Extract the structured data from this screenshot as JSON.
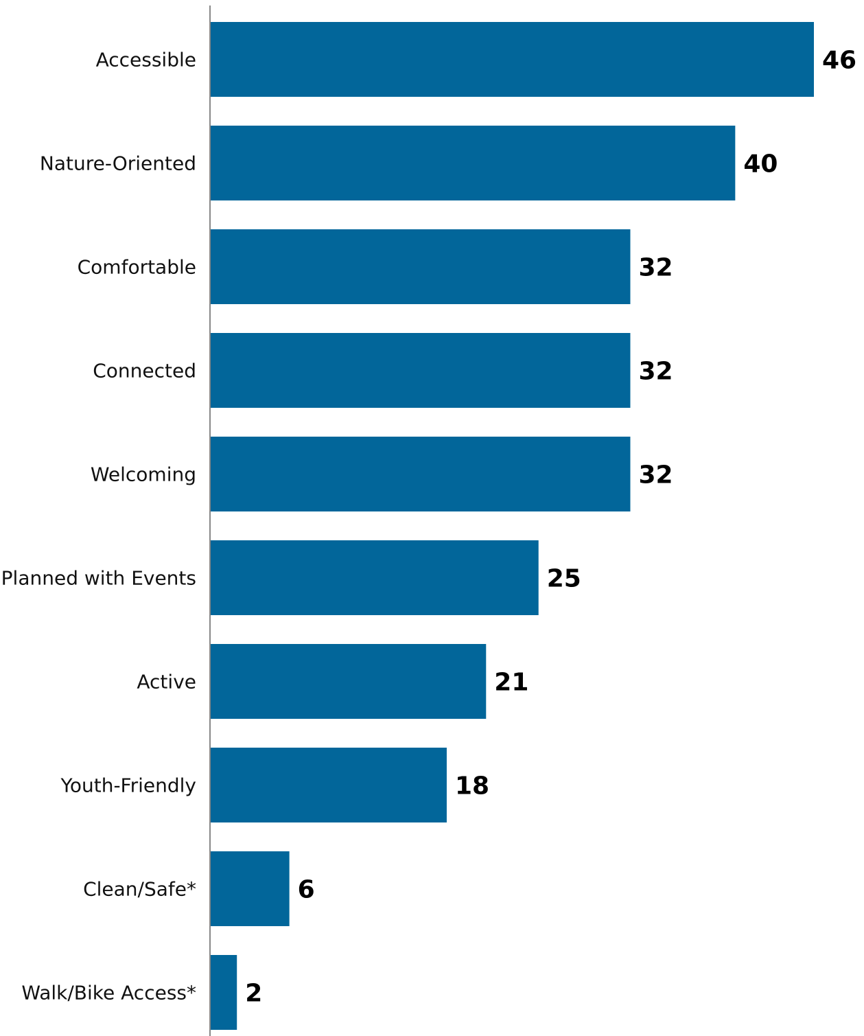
{
  "chart_data": {
    "type": "bar",
    "orientation": "horizontal",
    "categories": [
      "Accessible",
      "Nature-Oriented",
      "Comfortable",
      "Connected",
      "Welcoming",
      "Planned with Events",
      "Active",
      "Youth-Friendly",
      "Clean/Safe*",
      "Walk/Bike Access*"
    ],
    "values": [
      46,
      40,
      32,
      32,
      32,
      25,
      21,
      18,
      6,
      2
    ],
    "xlim": [
      0,
      46
    ],
    "grid": false,
    "legend": "none",
    "bar_color": "#02669a"
  }
}
